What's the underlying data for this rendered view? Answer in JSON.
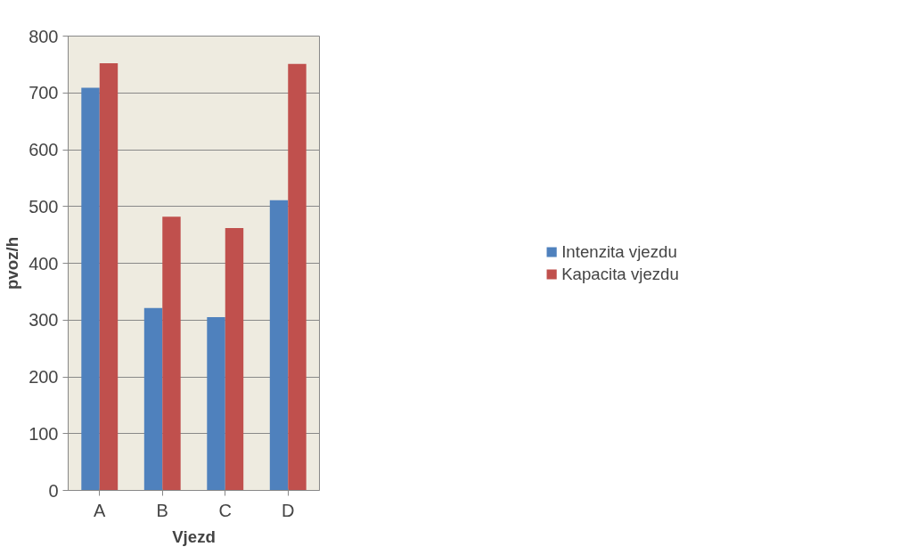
{
  "chart_data": {
    "type": "bar",
    "xlabel": "Vjezd",
    "ylabel": "pvoz/h",
    "categories": [
      "A",
      "B",
      "C",
      "D"
    ],
    "series": [
      {
        "name": "Intenzita vjezdu",
        "color": "#4f81bd",
        "values": [
          709,
          321,
          305,
          511
        ]
      },
      {
        "name": "Kapacita vjezdu",
        "color": "#c0504d",
        "values": [
          752,
          482,
          462,
          751
        ]
      }
    ],
    "ylim": [
      0,
      800
    ],
    "yticks": [
      0,
      100,
      200,
      300,
      400,
      500,
      600,
      700,
      800
    ],
    "grid": "y",
    "legend": "right"
  }
}
